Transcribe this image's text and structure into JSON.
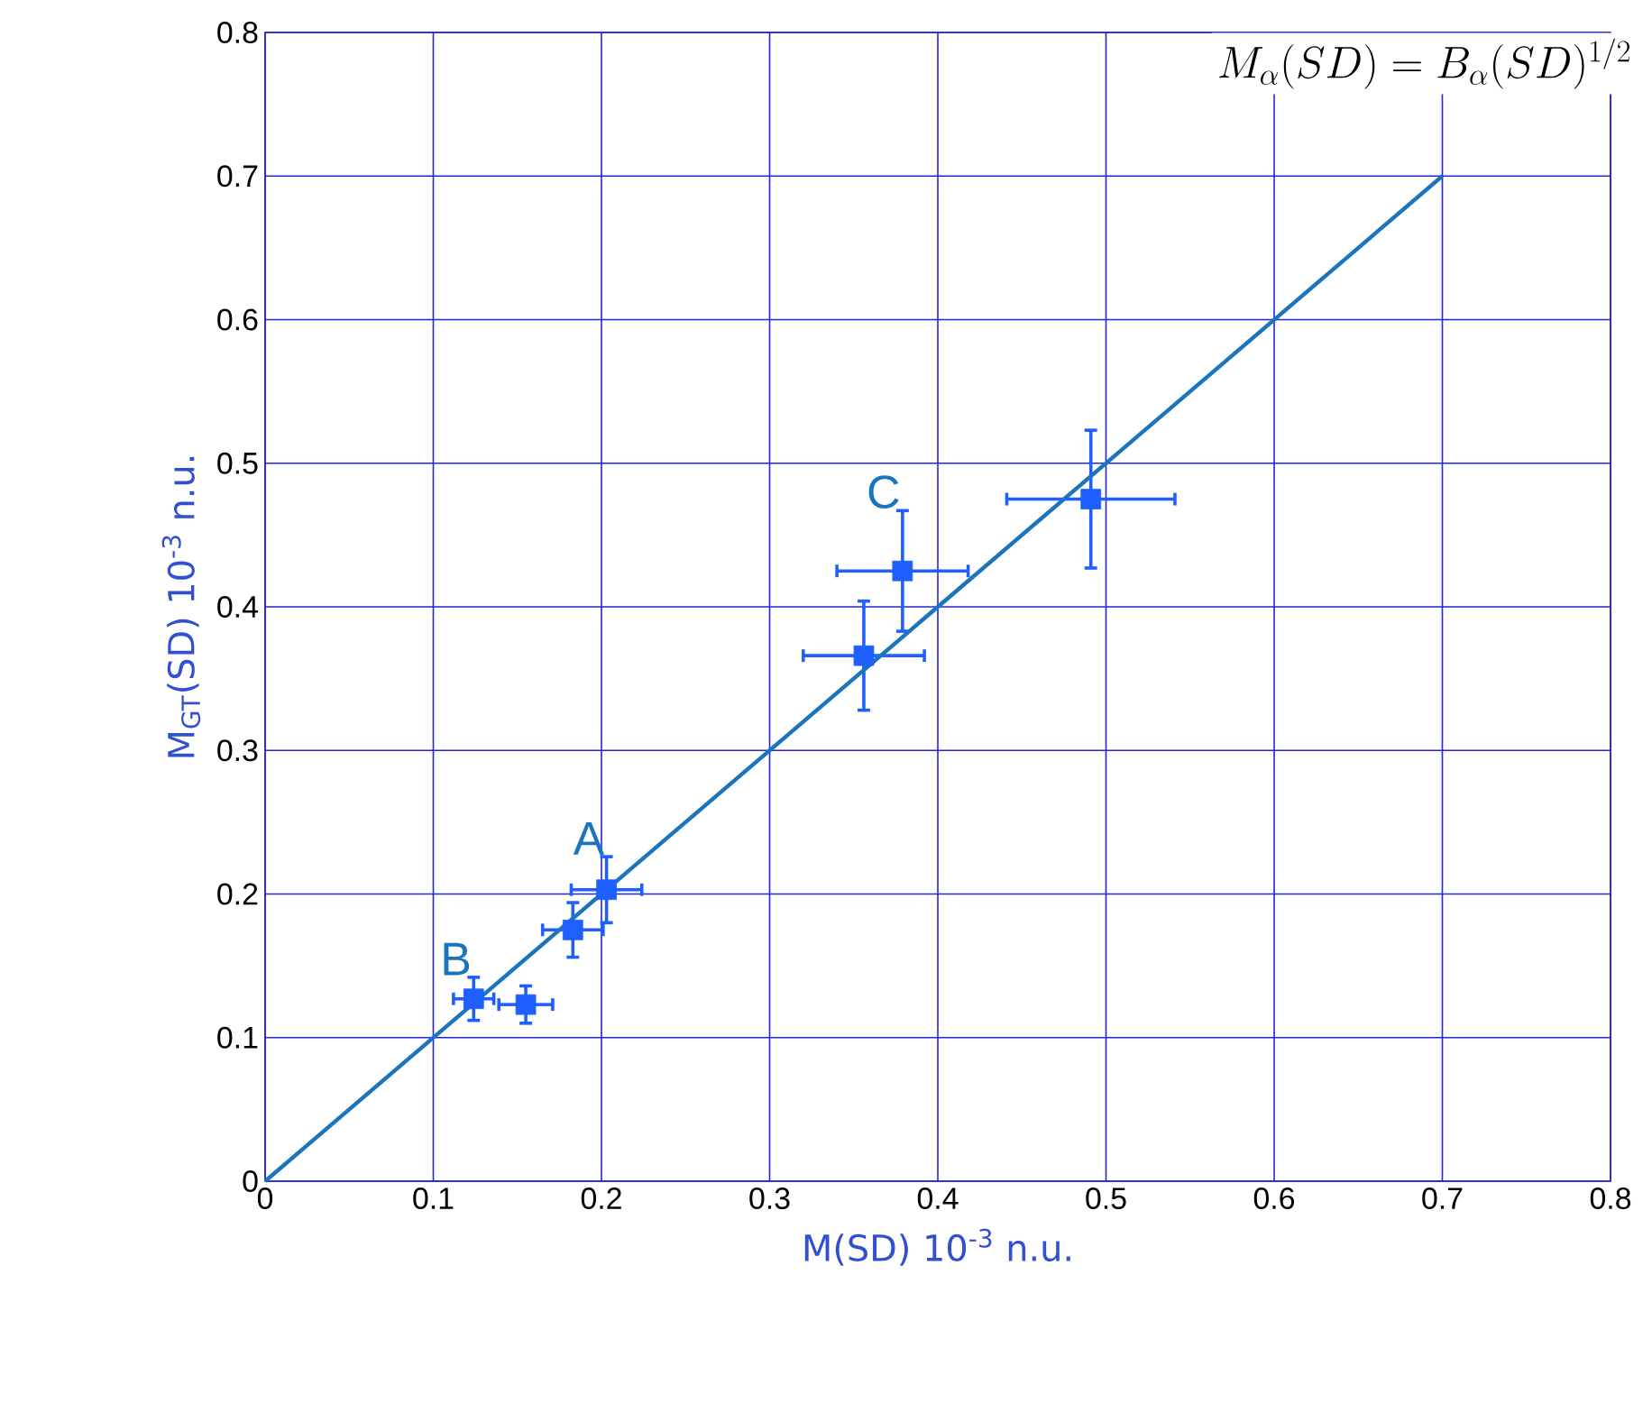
{
  "chart_data": {
    "type": "scatter",
    "xlabel": "M(SD) 10$^{-3}$ n.u.",
    "ylabel": "M$_{GT}$(SD)   10$^{-3}$ n.u.",
    "xlim": [
      0,
      0.8
    ],
    "ylim": [
      0,
      0.8
    ],
    "xticks": [
      0,
      0.1,
      0.2,
      0.3,
      0.4,
      0.5,
      0.6,
      0.7,
      0.8
    ],
    "yticks": [
      0,
      0.1,
      0.2,
      0.3,
      0.4,
      0.5,
      0.6,
      0.7,
      0.8
    ],
    "grid": true,
    "marker": "square",
    "series": [
      {
        "color": "#1f5fff",
        "x": [
          0.124,
          0.155,
          0.183,
          0.203,
          0.356,
          0.379,
          0.491
        ],
        "values": [
          0.127,
          0.123,
          0.175,
          0.203,
          0.366,
          0.425,
          0.475
        ],
        "xerrors": [
          0.012,
          0.016,
          0.018,
          0.021,
          0.036,
          0.039,
          0.05
        ],
        "errors": [
          0.015,
          0.013,
          0.019,
          0.023,
          0.038,
          0.042,
          0.048
        ]
      },
      {
        "type": "line",
        "color": "#1a75bc",
        "x": [
          0,
          0.7
        ],
        "values": [
          0,
          0.7
        ],
        "marker": "none"
      }
    ],
    "annotations": [
      "M_\\alpha(SD) = B_\\alpha(SD)^{1/2}",
      {
        "text": "A",
        "x": 0.203,
        "y": 0.203
      },
      {
        "text": "B",
        "x": 0.124,
        "y": 0.127
      },
      {
        "text": "C",
        "x": 0.379,
        "y": 0.425
      }
    ]
  }
}
